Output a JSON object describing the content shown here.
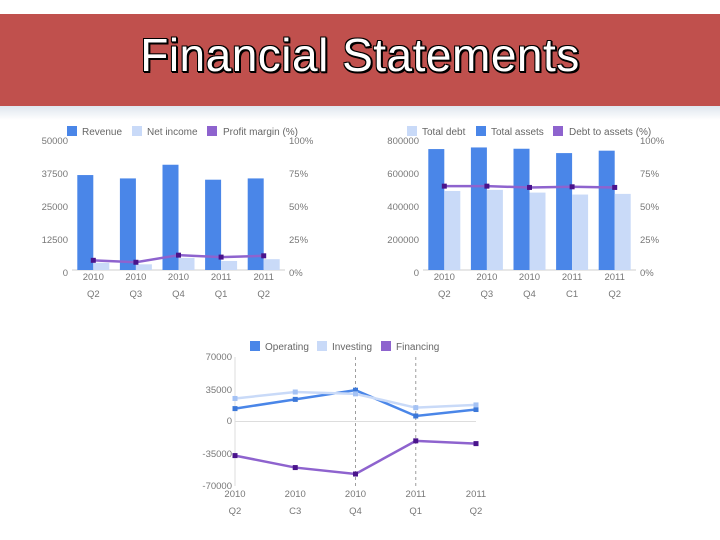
{
  "slide": {
    "title": "Financial Statements"
  },
  "colors": {
    "dark": "#4a86e8",
    "light": "#c9daf8",
    "purple": "#8e63ce",
    "purple_dark": "#4a148c",
    "banner": "#c0504d"
  },
  "chart_data": [
    {
      "type": "bar",
      "categories": [
        "2010 Q2",
        "2010 Q3",
        "2010 Q4",
        "2011 Q1",
        "2011 Q2"
      ],
      "category_lines": [
        [
          "2010",
          "Q2"
        ],
        [
          "2010",
          "Q3"
        ],
        [
          "2010",
          "Q4"
        ],
        [
          "2011",
          "Q1"
        ],
        [
          "2011",
          "Q2"
        ]
      ],
      "series": [
        {
          "name": "Revenue",
          "kind": "bar",
          "axis": "left",
          "values": [
            36800,
            35500,
            40800,
            35000,
            35500
          ]
        },
        {
          "name": "Net income",
          "kind": "bar",
          "axis": "left",
          "values": [
            2800,
            2200,
            4700,
            3500,
            4200
          ]
        },
        {
          "name": "Profit margin (%)",
          "kind": "line",
          "axis": "right",
          "values": [
            7.5,
            6.0,
            11.5,
            10.0,
            11.0
          ]
        }
      ],
      "left_ticks": [
        "50000",
        "37500",
        "25000",
        "12500",
        "0"
      ],
      "right_ticks": [
        "100%",
        "75%",
        "50%",
        "25%",
        "0%"
      ],
      "ylim_left": [
        0,
        50000
      ],
      "ylim_right": [
        0,
        100
      ],
      "legend_position": "top"
    },
    {
      "type": "bar",
      "categories": [
        "2010 Q2",
        "2010 Q3",
        "2010 Q4",
        "2011 C1",
        "2011 Q2"
      ],
      "category_lines": [
        [
          "2010",
          "Q2"
        ],
        [
          "2010",
          "Q3"
        ],
        [
          "2010",
          "Q4"
        ],
        [
          "2011",
          "C1"
        ],
        [
          "2011",
          "Q2"
        ]
      ],
      "series": [
        {
          "name": "Total debt",
          "kind": "bar",
          "axis": "left",
          "values": [
            490000,
            497000,
            480000,
            468000,
            472000
          ]
        },
        {
          "name": "Total assets",
          "kind": "bar",
          "axis": "left",
          "values": [
            750000,
            760000,
            752000,
            725000,
            740000
          ]
        },
        {
          "name": "Debt to assets (%)",
          "kind": "line",
          "axis": "right",
          "values": [
            65,
            65,
            64,
            64.5,
            64
          ]
        }
      ],
      "left_ticks": [
        "800000",
        "600000",
        "400000",
        "200000",
        "0"
      ],
      "right_ticks": [
        "100%",
        "75%",
        "50%",
        "25%",
        "0%"
      ],
      "ylim_left": [
        0,
        800000
      ],
      "ylim_right": [
        0,
        100
      ],
      "legend_position": "top"
    },
    {
      "type": "line",
      "categories": [
        "2010 Q2",
        "2010 C3",
        "2010 Q4",
        "2011 Q1",
        "2011 Q2"
      ],
      "category_lines": [
        [
          "2010",
          "Q2"
        ],
        [
          "2010",
          "C3"
        ],
        [
          "2010",
          "Q4"
        ],
        [
          "2011",
          "Q1"
        ],
        [
          "2011",
          "Q2"
        ]
      ],
      "series": [
        {
          "name": "Operating",
          "values": [
            14000,
            24000,
            34000,
            6000,
            13000
          ]
        },
        {
          "name": "Investing",
          "values": [
            25000,
            32000,
            30000,
            15000,
            18000
          ]
        },
        {
          "name": "Financing",
          "values": [
            -37000,
            -50000,
            -57000,
            -21000,
            -24000
          ]
        }
      ],
      "y_ticks": [
        "70000",
        "35000",
        "0",
        "-35000",
        "-70000"
      ],
      "ylim": [
        -70000,
        70000
      ],
      "grid": "vertical dashed",
      "legend_position": "top"
    }
  ]
}
